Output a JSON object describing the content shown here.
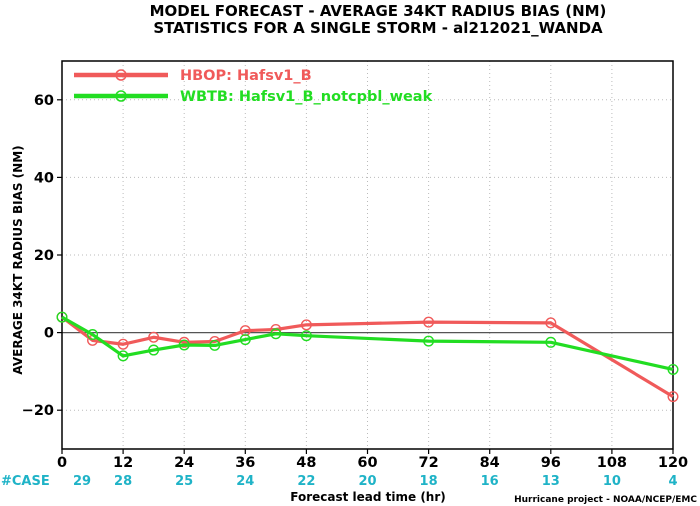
{
  "chart_data": {
    "type": "line",
    "title": "MODEL FORECAST - AVERAGE 34KT RADIUS BIAS (NM)",
    "subtitle": "STATISTICS FOR A SINGLE STORM - al212021_WANDA",
    "xlabel": "Forecast lead time (hr)",
    "ylabel": "AVERAGE 34KT RADIUS BIAS (NM)",
    "xlim": [
      0,
      120
    ],
    "ylim": [
      -30,
      70
    ],
    "x_ticks": [
      0,
      12,
      24,
      36,
      48,
      60,
      72,
      84,
      96,
      108,
      120
    ],
    "y_ticks": [
      -20,
      0,
      20,
      40,
      60
    ],
    "y_tick_labels": [
      "−20",
      "0",
      "20",
      "40",
      "60"
    ],
    "grid": true,
    "legend_position": "top-left",
    "series": [
      {
        "name": "HBOP: Hafsv1_B",
        "color": "#f05a5a",
        "points": [
          [
            0,
            4.0
          ],
          [
            6,
            -2.0
          ],
          [
            12,
            -3.0
          ],
          [
            18,
            -1.2
          ],
          [
            24,
            -2.5
          ],
          [
            30,
            -2.3
          ],
          [
            36,
            0.5
          ],
          [
            42,
            0.8
          ],
          [
            48,
            2.0
          ],
          [
            72,
            2.7
          ],
          [
            96,
            2.5
          ],
          [
            120,
            -16.5
          ]
        ]
      },
      {
        "name": "WBTB: Hafsv1_B_notcpbl_weak",
        "color": "#22dd22",
        "points": [
          [
            0,
            4.0
          ],
          [
            6,
            -0.5
          ],
          [
            12,
            -6.0
          ],
          [
            18,
            -4.5
          ],
          [
            24,
            -3.2
          ],
          [
            30,
            -3.3
          ],
          [
            36,
            -1.8
          ],
          [
            42,
            -0.3
          ],
          [
            48,
            -0.8
          ],
          [
            72,
            -2.2
          ],
          [
            96,
            -2.5
          ],
          [
            120,
            -9.5
          ]
        ]
      }
    ],
    "case_counts": {
      "label": "#CASE",
      "x": [
        0,
        12,
        24,
        36,
        48,
        60,
        72,
        84,
        96,
        108,
        120
      ],
      "values": [
        "29",
        "28",
        "25",
        "24",
        "22",
        "20",
        "18",
        "16",
        "13",
        "10",
        "4"
      ]
    },
    "credit": "Hurricane project - NOAA/NCEP/EMC"
  }
}
